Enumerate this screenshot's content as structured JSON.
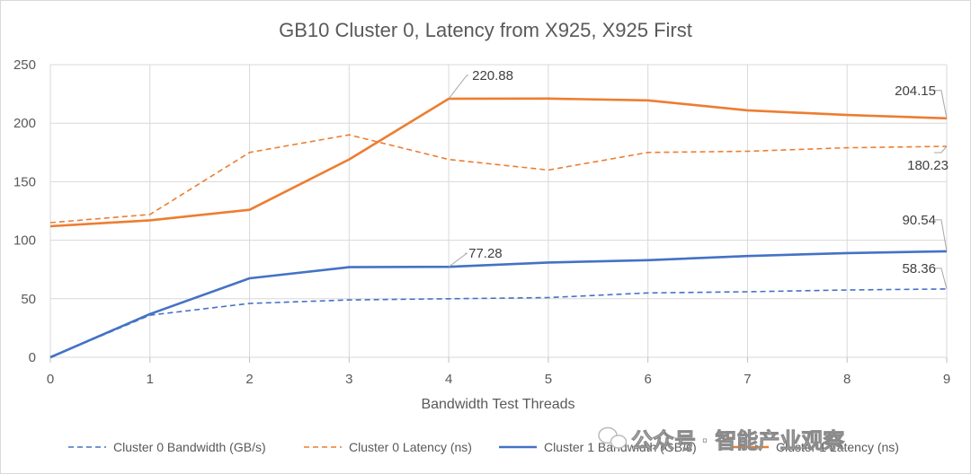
{
  "chart_data": {
    "type": "line",
    "title": "GB10 Cluster 0, Latency from X925, X925 First",
    "xlabel": "Bandwidth Test Threads",
    "ylabel": "",
    "x": [
      0,
      1,
      2,
      3,
      4,
      5,
      6,
      7,
      8,
      9
    ],
    "xlim": [
      0,
      9
    ],
    "ylim": [
      0,
      250
    ],
    "yticks": [
      0,
      50,
      100,
      150,
      200,
      250
    ],
    "grid": true,
    "legend_position": "bottom",
    "series": [
      {
        "name": "Cluster 0 Bandwidth (GB/s)",
        "color": "#4472c4",
        "style": "dashed",
        "values": [
          0,
          36,
          46,
          49,
          50,
          51,
          55,
          56,
          57.5,
          58.36
        ]
      },
      {
        "name": "Cluster 0 Latency (ns)",
        "color": "#ed7d31",
        "style": "dashed",
        "values": [
          115,
          122,
          175,
          190,
          169,
          160,
          175,
          176,
          179,
          180.23
        ]
      },
      {
        "name": "Cluster 1 Bandwidth (GB/s)",
        "color": "#4472c4",
        "style": "solid",
        "values": [
          0,
          37,
          67.5,
          77,
          77.28,
          81,
          83,
          86.5,
          89,
          90.54
        ]
      },
      {
        "name": "Cluster 1 Latency (ns)",
        "color": "#ed7d31",
        "style": "solid",
        "values": [
          112,
          117,
          126,
          169,
          220.88,
          221,
          219.5,
          211,
          207,
          204.15
        ]
      }
    ],
    "annotations": [
      {
        "text": "220.88",
        "series": 3,
        "x": 4
      },
      {
        "text": "77.28",
        "series": 2,
        "x": 4
      },
      {
        "text": "204.15",
        "series": 3,
        "x": 9
      },
      {
        "text": "180.23",
        "series": 1,
        "x": 9
      },
      {
        "text": "90.54",
        "series": 2,
        "x": 9
      },
      {
        "text": "58.36",
        "series": 0,
        "x": 9
      }
    ]
  },
  "watermark": {
    "text": "公众号 · 智能产业观察",
    "icon": "wechat-icon"
  }
}
